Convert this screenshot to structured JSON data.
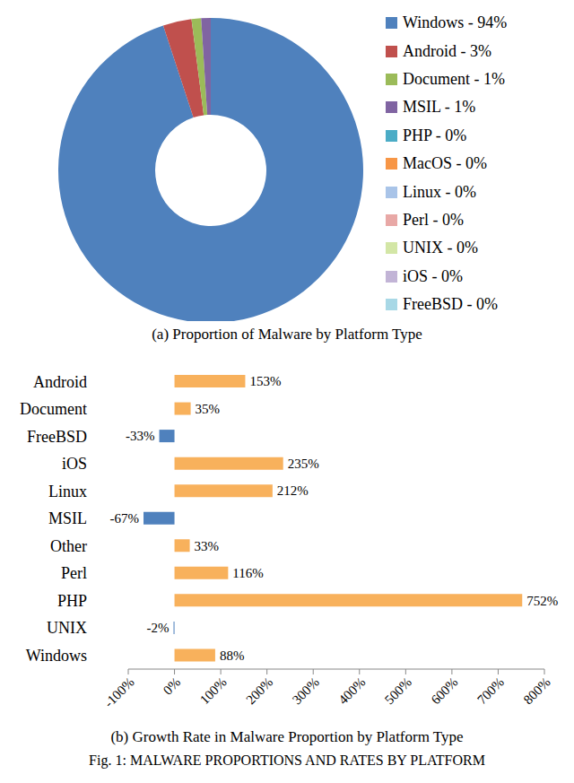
{
  "chart_data": [
    {
      "type": "pie",
      "title": "(a) Proportion of Malware by Platform Type",
      "categories": [
        "Windows - 94%",
        "Android - 3%",
        "Document - 1%",
        "MSIL - 1%",
        "PHP - 0%",
        "MacOS - 0%",
        "Linux - 0%",
        "Perl - 0%",
        "UNIX - 0%",
        "iOS - 0%",
        "FreeBSD - 0%"
      ],
      "values": [
        94,
        3,
        1,
        1,
        0,
        0,
        0,
        0,
        0,
        0,
        0
      ],
      "colors": [
        "#4f81bd",
        "#c0504d",
        "#9bbb59",
        "#8064a2",
        "#4bacc6",
        "#f79646",
        "#a9c4e8",
        "#e8a8a6",
        "#d3e6a6",
        "#c2b4d6",
        "#a8d8e6"
      ],
      "legend": "right"
    },
    {
      "type": "bar",
      "title": "(b) Growth Rate in Malware Proportion by Platform Type",
      "orientation": "horizontal",
      "categories": [
        "Android",
        "Document",
        "FreeBSD",
        "iOS",
        "Linux",
        "MSIL",
        "Other",
        "Perl",
        "PHP",
        "UNIX",
        "Windows"
      ],
      "values": [
        153,
        35,
        -33,
        235,
        212,
        -67,
        33,
        116,
        752,
        -2,
        88
      ],
      "value_labels": [
        "153%",
        "35%",
        "-33%",
        "235%",
        "212%",
        "-67%",
        "33%",
        "116%",
        "752%",
        "-2%",
        "88%"
      ],
      "colors": [
        "#f8b15c",
        "#f8b15c",
        "#4f81bd",
        "#f8b15c",
        "#f8b15c",
        "#4f81bd",
        "#f8b15c",
        "#f8b15c",
        "#f8b15c",
        "#4f81bd",
        "#f8b15c"
      ],
      "xlim": [
        -100,
        800
      ],
      "xticks": [
        {
          "value": -100,
          "label": "-100%"
        },
        {
          "value": 0,
          "label": "0%"
        },
        {
          "value": 100,
          "label": "100%"
        },
        {
          "value": 200,
          "label": "200%"
        },
        {
          "value": 300,
          "label": "300%"
        },
        {
          "value": 400,
          "label": "400%"
        },
        {
          "value": 500,
          "label": "500%"
        },
        {
          "value": 600,
          "label": "600%"
        },
        {
          "value": 700,
          "label": "700%"
        },
        {
          "value": 800,
          "label": "800%"
        }
      ],
      "data_labels": true,
      "grid": false
    }
  ],
  "caption": "Fig. 1: MALWARE PROPORTIONS AND RATES BY PLATFORM"
}
